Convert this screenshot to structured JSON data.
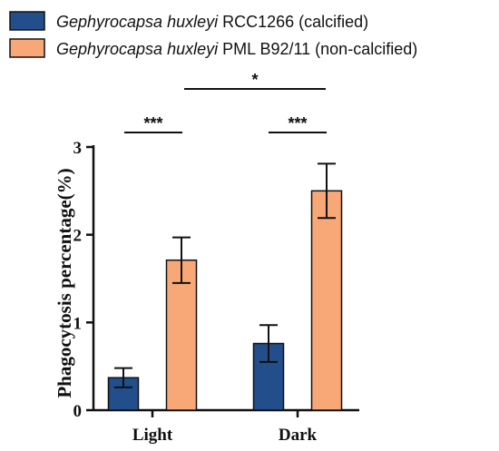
{
  "chart_data": {
    "type": "bar",
    "categories": [
      "Light",
      "Dark"
    ],
    "series": [
      {
        "name_italic": "Gephyrocapsa huxleyi",
        "name_rest": " RCC1266 (calcified)",
        "color": "#234e8c",
        "values": [
          0.37,
          0.76
        ],
        "errors": [
          0.11,
          0.21
        ]
      },
      {
        "name_italic": "Gephyrocapsa huxleyi",
        "name_rest": " PML B92/11 (non-calcified)",
        "color": "#f8a876",
        "values": [
          1.71,
          2.5
        ],
        "errors": [
          0.26,
          0.31
        ]
      }
    ],
    "ylabel": "Phagocytosis percentage(%)",
    "ylim": [
      0,
      3
    ],
    "yticks": [
      "0",
      "1",
      "2",
      "3"
    ],
    "legend_position": "top-left",
    "grid": false,
    "significance": [
      {
        "label": "***",
        "between": "Light"
      },
      {
        "label": "***",
        "between": "Dark"
      },
      {
        "label": "*",
        "between": "Light-Dark"
      }
    ]
  }
}
